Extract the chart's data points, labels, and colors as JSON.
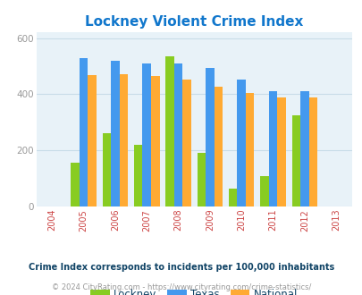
{
  "title": "Lockney Violent Crime Index",
  "years": [
    2005,
    2006,
    2007,
    2008,
    2009,
    2010,
    2011,
    2012
  ],
  "lockney": [
    155,
    260,
    220,
    535,
    190,
    65,
    108,
    325
  ],
  "texas": [
    530,
    520,
    510,
    510,
    493,
    452,
    410,
    410
  ],
  "national": [
    468,
    472,
    464,
    452,
    428,
    404,
    390,
    390
  ],
  "lockney_color": "#88cc22",
  "texas_color": "#4499ee",
  "national_color": "#ffaa33",
  "plot_bg": "#e8f2f8",
  "title_color": "#1177cc",
  "xtick_color": "#cc4444",
  "ytick_color": "#999999",
  "xlim": [
    2003.5,
    2013.5
  ],
  "ylim": [
    0,
    620
  ],
  "yticks": [
    0,
    200,
    400,
    600
  ],
  "bar_width": 0.27,
  "legend_labels": [
    "Lockney",
    "Texas",
    "National"
  ],
  "legend_text_color": "#114466",
  "footnote1": "Crime Index corresponds to incidents per 100,000 inhabitants",
  "footnote2": "© 2024 CityRating.com - https://www.cityrating.com/crime-statistics/",
  "footnote1_color": "#114466",
  "footnote2_color": "#999999",
  "grid_color": "#c8dce8"
}
